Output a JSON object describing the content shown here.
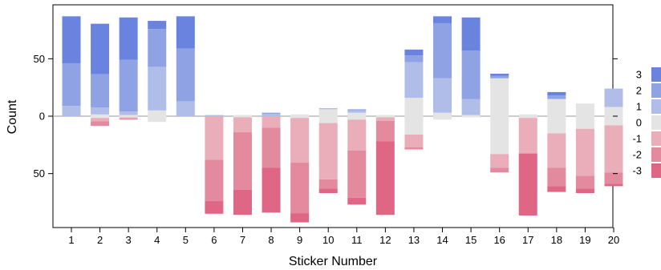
{
  "chart_data": {
    "type": "bar",
    "subtype": "diverging-stacked",
    "xlabel": "Sticker Number",
    "ylabel": "Count",
    "categories": [
      "1",
      "2",
      "3",
      "4",
      "5",
      "6",
      "7",
      "8",
      "9",
      "10",
      "11",
      "12",
      "13",
      "14",
      "15",
      "16",
      "17",
      "18",
      "19",
      "20"
    ],
    "y_ticks": [
      {
        "value": 50,
        "label": "50"
      },
      {
        "value": 0,
        "label": "0"
      },
      {
        "value": -50,
        "label": "50"
      }
    ],
    "ylim": [
      -97,
      97
    ],
    "grid": false,
    "legend_position": "right",
    "legend_levels": [
      {
        "name": "3",
        "color": "#6A83DE"
      },
      {
        "name": "2",
        "color": "#8EA2E4"
      },
      {
        "name": "1",
        "color": "#B1BDE9"
      },
      {
        "name": "0",
        "color": "#E4E4E4"
      },
      {
        "name": "-1",
        "color": "#EAAEBB"
      },
      {
        "name": "-2",
        "color": "#E48A9E"
      },
      {
        "name": "-3",
        "color": "#DF6684"
      }
    ],
    "series": [
      {
        "name": "3",
        "values": [
          41,
          44,
          37,
          7,
          28,
          0,
          0,
          0,
          0,
          0,
          0,
          0,
          5,
          6,
          29,
          2,
          0,
          3,
          0,
          0
        ]
      },
      {
        "name": "2",
        "values": [
          37,
          29,
          45,
          33,
          46,
          0,
          0,
          1,
          0,
          0,
          1,
          0,
          6,
          48,
          42,
          2,
          0,
          3,
          0,
          0
        ]
      },
      {
        "name": "1",
        "values": [
          9,
          6,
          3,
          38,
          13,
          1,
          0,
          2,
          0,
          1,
          2,
          0,
          31,
          30,
          14,
          0,
          0,
          0,
          0,
          16
        ]
      },
      {
        "name": "0",
        "values": [
          0,
          3,
          2,
          10,
          0,
          0,
          2,
          0,
          3,
          12,
          6,
          2,
          32,
          6,
          2,
          66,
          3,
          30,
          22,
          16
        ]
      },
      {
        "name": "-1",
        "values": [
          0,
          3,
          1,
          0,
          0,
          38,
          13,
          10,
          39,
          49,
          27,
          3,
          11,
          0,
          0,
          12,
          31,
          30,
          41,
          41
        ]
      },
      {
        "name": "-2",
        "values": [
          0,
          4,
          1,
          0,
          0,
          36,
          50,
          35,
          44,
          8,
          41,
          18,
          2,
          0,
          0,
          4,
          0,
          16,
          11,
          10
        ]
      },
      {
        "name": "-3",
        "values": [
          0,
          0,
          0,
          0,
          0,
          11,
          22,
          39,
          8,
          4,
          6,
          64,
          0,
          0,
          0,
          0,
          54,
          5,
          4,
          2
        ]
      }
    ]
  }
}
